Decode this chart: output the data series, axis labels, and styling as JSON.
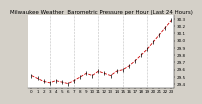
{
  "title": "Milwaukee Weather  Barometric Pressure per Hour (Last 24 Hours)",
  "background_color": "#d4d0c8",
  "plot_bg_color": "#ffffff",
  "grid_color": "#888888",
  "line_color": "#cc0000",
  "marker_color": "#000000",
  "hours": [
    0,
    1,
    2,
    3,
    4,
    5,
    6,
    7,
    8,
    9,
    10,
    11,
    12,
    13,
    14,
    15,
    16,
    17,
    18,
    19,
    20,
    21,
    22,
    23
  ],
  "pressure": [
    29.52,
    29.48,
    29.44,
    29.42,
    29.45,
    29.43,
    29.41,
    29.45,
    29.5,
    29.55,
    29.52,
    29.58,
    29.55,
    29.52,
    29.58,
    29.6,
    29.65,
    29.72,
    29.8,
    29.88,
    29.98,
    30.08,
    30.18,
    30.28
  ],
  "ylim_min": 29.35,
  "ylim_max": 30.35,
  "ytick_min": 29.4,
  "ytick_max": 30.3,
  "ytick_step": 0.1,
  "vgrid_positions": [
    3,
    7,
    11,
    15,
    19
  ],
  "title_fontsize": 4.0,
  "tick_fontsize": 3.0,
  "line_width": 0.6,
  "marker_size": 1.2
}
